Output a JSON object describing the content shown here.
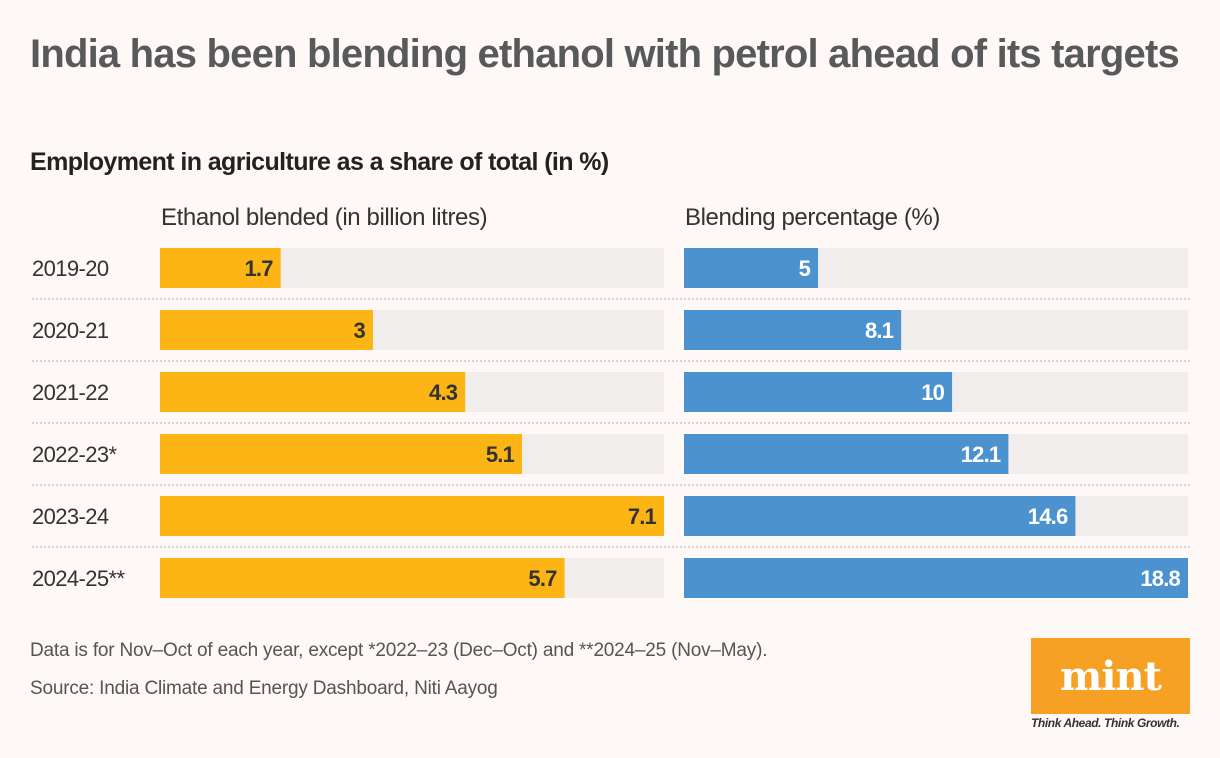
{
  "title": "India has been blending ethanol with petrol ahead of its targets",
  "subtitle": "Employment in agriculture as a share of total (in %)",
  "footnotes": {
    "note": "Data is for Nov–Oct of each year, except *2022–23 (Dec–Oct) and **2024–25 (Nov–May).",
    "source": "Source: India Climate and Energy Dashboard, Niti Aayog"
  },
  "logo": {
    "text": "mint",
    "tagline": "Think Ahead. Think Growth.",
    "color": "#f7a124"
  },
  "colors": {
    "ethanol": "#fdb515",
    "blending": "#4c92cf",
    "track": "#f2eded",
    "separator": "#d6d2d2",
    "label_dark": "#333333",
    "label_light": "#ffffff"
  },
  "chart_data": {
    "type": "bar",
    "orientation": "horizontal",
    "title": "India has been blending ethanol with petrol ahead of its targets",
    "categories": [
      "2019-20",
      "2020-21",
      "2021-22",
      "2022-23*",
      "2023-24",
      "2024-25**"
    ],
    "series": [
      {
        "name": "Ethanol blended (in billion litres)",
        "values": [
          1.7,
          3,
          4.3,
          5.1,
          7.1,
          5.7
        ],
        "xlim": [
          0,
          7.1
        ]
      },
      {
        "name": "Blending percentage (%)",
        "values": [
          5,
          8.1,
          10,
          12.1,
          14.6,
          18.8
        ],
        "xlim": [
          0,
          18.8
        ]
      }
    ],
    "grid": false,
    "legend": "none"
  }
}
